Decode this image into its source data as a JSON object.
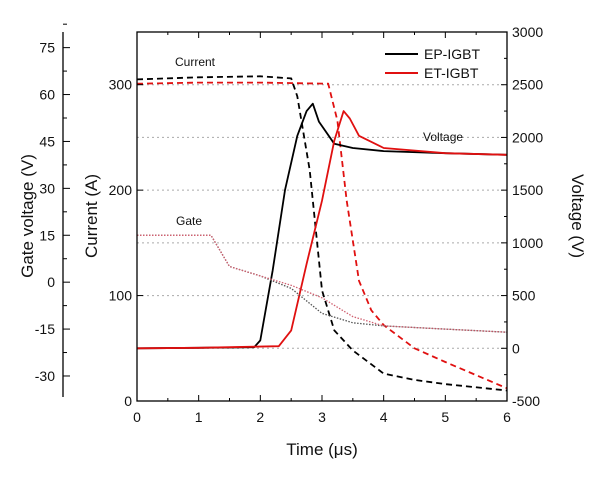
{
  "chart_data": {
    "type": "line",
    "xlabel": "Time (μs)",
    "xlim": [
      0,
      6
    ],
    "xticks": [
      "0",
      "1",
      "2",
      "3",
      "4",
      "5",
      "6"
    ],
    "axes": {
      "current": {
        "label": "Current (A)",
        "ylim": [
          0,
          350
        ],
        "ticks": [
          "0",
          "100",
          "200",
          "300"
        ]
      },
      "voltage": {
        "label": "Voltage (V)",
        "ylim": [
          -500,
          3000
        ],
        "ticks": [
          "-500",
          "0",
          "500",
          "1000",
          "1500",
          "2000",
          "2500",
          "3000"
        ]
      },
      "gate": {
        "label": "Gate voltage (V)",
        "ylim": [
          -38,
          80
        ],
        "ticks": [
          "-30",
          "-15",
          "0",
          "15",
          "30",
          "45",
          "60",
          "75"
        ]
      }
    },
    "grid": "horizontal dotted",
    "legend": {
      "placement": "top-right",
      "entries": [
        {
          "name": "EP-IGBT",
          "color": "#000000"
        },
        {
          "name": "ET-IGBT",
          "color": "#e01010"
        }
      ]
    },
    "annotations": [
      "Current",
      "Gate",
      "Voltage"
    ],
    "series": [
      {
        "device": "EP-IGBT",
        "quantity": "current",
        "axis": "current",
        "style": "dashed",
        "color": "#000000",
        "x": [
          0,
          1,
          2,
          2.5,
          2.6,
          2.8,
          3.0,
          3.2,
          3.5,
          4,
          4.5,
          5,
          6
        ],
        "y": [
          305,
          307,
          308,
          306,
          289,
          219,
          105,
          67,
          48,
          26,
          20,
          16,
          10
        ]
      },
      {
        "device": "ET-IGBT",
        "quantity": "current",
        "axis": "current",
        "style": "dashed",
        "color": "#e01010",
        "x": [
          0,
          1,
          2,
          3.1,
          3.25,
          3.4,
          3.6,
          3.8,
          4,
          4.5,
          5,
          6
        ],
        "y": [
          301,
          302,
          302,
          301,
          266,
          190,
          114,
          86,
          72,
          50,
          37,
          12
        ]
      },
      {
        "device": "EP-IGBT",
        "quantity": "voltage",
        "axis": "voltage",
        "style": "solid",
        "color": "#000000",
        "x": [
          0,
          1,
          1.9,
          2.0,
          2.2,
          2.4,
          2.6,
          2.75,
          2.85,
          2.95,
          3.2,
          3.5,
          4,
          5,
          6
        ],
        "y": [
          0,
          5,
          10,
          75,
          740,
          1500,
          2015,
          2250,
          2320,
          2150,
          1940,
          1900,
          1870,
          1850,
          1835
        ]
      },
      {
        "device": "ET-IGBT",
        "quantity": "voltage",
        "axis": "voltage",
        "style": "solid",
        "color": "#e01010",
        "x": [
          0,
          1,
          2.3,
          2.5,
          2.75,
          3.0,
          3.2,
          3.35,
          3.45,
          3.6,
          4,
          5,
          6
        ],
        "y": [
          0,
          5,
          20,
          170,
          800,
          1400,
          1970,
          2250,
          2180,
          2015,
          1900,
          1850,
          1835
        ]
      },
      {
        "device": "EP-IGBT",
        "quantity": "gate",
        "axis": "gate",
        "style": "dotted",
        "color": "#555555",
        "x": [
          0,
          1.2,
          1.5,
          2,
          2.5,
          3,
          3.5,
          4,
          5,
          6
        ],
        "y": [
          15,
          15,
          5,
          2,
          -2,
          -10,
          -13,
          -14,
          -15,
          -16
        ]
      },
      {
        "device": "ET-IGBT",
        "quantity": "gate",
        "axis": "gate",
        "style": "dotted",
        "color": "#d06070",
        "x": [
          0,
          1.2,
          1.5,
          2,
          2.5,
          3,
          3.5,
          4,
          5,
          6
        ],
        "y": [
          15,
          15,
          5,
          2,
          -1,
          -5,
          -11,
          -14,
          -15,
          -16
        ]
      }
    ]
  }
}
